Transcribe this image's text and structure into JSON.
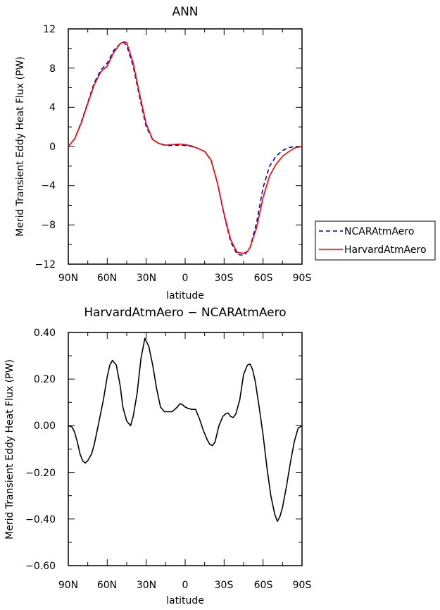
{
  "chart_data": [
    {
      "type": "line",
      "title": "ANN",
      "xlabel": "latitude",
      "ylabel": "Merid Transient Eddy Heat Flux (PW)",
      "x_ticks": [
        "90N",
        "60N",
        "30N",
        "0",
        "30S",
        "60S",
        "90S"
      ],
      "x_tick_values": [
        90,
        60,
        30,
        0,
        -30,
        -60,
        -90
      ],
      "xlim": [
        90,
        -90
      ],
      "ylim": [
        -12,
        12
      ],
      "y_ticks": [
        "12",
        "8",
        "4",
        "0",
        "−4",
        "−8",
        "−12"
      ],
      "y_tick_values": [
        12,
        8,
        4,
        0,
        -4,
        -8,
        -12
      ],
      "legend_position": "right",
      "series": [
        {
          "name": "NCARAtmAero",
          "color": "#0000cc",
          "dash": "dashed",
          "x": [
            90,
            85,
            80,
            75,
            70,
            65,
            60,
            55,
            50,
            47,
            45,
            40,
            35,
            30,
            25,
            20,
            15,
            10,
            5,
            0,
            -5,
            -10,
            -15,
            -20,
            -25,
            -30,
            -35,
            -40,
            -45,
            -48,
            -50,
            -55,
            -60,
            -65,
            -70,
            -75,
            -80,
            -85,
            -90
          ],
          "y": [
            0,
            0.8,
            2.5,
            4.5,
            6.5,
            7.8,
            8.5,
            9.8,
            10.5,
            10.6,
            10.3,
            8.2,
            5.0,
            2.0,
            0.7,
            0.3,
            0.1,
            0.1,
            0.15,
            0.1,
            0.0,
            -0.2,
            -0.5,
            -1.4,
            -3.8,
            -7.0,
            -9.7,
            -11.0,
            -11.1,
            -10.7,
            -10.3,
            -7.8,
            -4.2,
            -2.0,
            -1.0,
            -0.4,
            -0.1,
            0,
            0
          ]
        },
        {
          "name": "HarvardAtmAero",
          "color": "#ff0000",
          "dash": "solid",
          "x": [
            90,
            85,
            80,
            75,
            70,
            65,
            60,
            55,
            50,
            47,
            45,
            40,
            35,
            30,
            25,
            20,
            15,
            10,
            5,
            0,
            -5,
            -10,
            -15,
            -20,
            -25,
            -30,
            -35,
            -40,
            -45,
            -48,
            -50,
            -55,
            -60,
            -65,
            -70,
            -75,
            -80,
            -85,
            -90
          ],
          "y": [
            0,
            0.8,
            2.4,
            4.4,
            6.3,
            7.6,
            8.2,
            9.6,
            10.5,
            10.7,
            10.6,
            8.5,
            5.3,
            2.3,
            0.7,
            0.3,
            0.15,
            0.2,
            0.25,
            0.2,
            0.05,
            -0.2,
            -0.5,
            -1.4,
            -3.8,
            -6.9,
            -9.5,
            -10.8,
            -10.9,
            -10.7,
            -10.3,
            -8.3,
            -5.2,
            -3.0,
            -1.8,
            -1.0,
            -0.5,
            -0.1,
            0
          ]
        }
      ]
    },
    {
      "type": "line",
      "title": "HarvardAtmAero − NCARAtmAero",
      "xlabel": "latitude",
      "ylabel": "Merid Transient Eddy Heat Flux (PW)",
      "x_ticks": [
        "90N",
        "60N",
        "30N",
        "0",
        "30S",
        "60S",
        "90S"
      ],
      "x_tick_values": [
        90,
        60,
        30,
        0,
        -30,
        -60,
        -90
      ],
      "xlim": [
        90,
        -90
      ],
      "ylim": [
        -0.6,
        0.4
      ],
      "y_ticks": [
        "0.40",
        "0.20",
        "0.00",
        "−0.20",
        "−0.40",
        "−0.60"
      ],
      "y_tick_values": [
        0.4,
        0.2,
        0.0,
        -0.2,
        -0.4,
        -0.6
      ],
      "series": [
        {
          "name": "",
          "color": "#000000",
          "dash": "solid",
          "x": [
            90,
            87,
            85,
            83,
            81,
            79,
            77,
            75,
            72,
            70,
            67,
            63,
            60,
            58,
            56,
            53,
            50,
            48,
            45,
            42,
            40,
            37,
            34,
            31,
            28,
            25,
            22,
            19,
            16,
            13,
            10,
            8,
            6,
            4,
            2,
            0,
            -2,
            -5,
            -8,
            -11,
            -14,
            -17,
            -19,
            -21,
            -23,
            -26,
            -29,
            -31,
            -33,
            -35,
            -37,
            -39,
            -42,
            -45,
            -48,
            -50,
            -52,
            -54,
            -57,
            -60,
            -63,
            -66,
            -69,
            -71,
            -73,
            -75,
            -78,
            -81,
            -84,
            -87,
            -90
          ],
          "y": [
            0.0,
            -0.005,
            -0.03,
            -0.07,
            -0.12,
            -0.15,
            -0.16,
            -0.15,
            -0.12,
            -0.08,
            0.0,
            0.11,
            0.21,
            0.26,
            0.28,
            0.26,
            0.17,
            0.08,
            0.02,
            0.0,
            0.04,
            0.14,
            0.29,
            0.375,
            0.34,
            0.26,
            0.16,
            0.08,
            0.06,
            0.06,
            0.06,
            0.07,
            0.08,
            0.095,
            0.09,
            0.08,
            0.075,
            0.07,
            0.07,
            0.03,
            -0.02,
            -0.06,
            -0.08,
            -0.085,
            -0.07,
            0.0,
            0.04,
            0.05,
            0.055,
            0.04,
            0.035,
            0.05,
            0.11,
            0.22,
            0.26,
            0.265,
            0.24,
            0.19,
            0.08,
            -0.04,
            -0.18,
            -0.3,
            -0.38,
            -0.41,
            -0.39,
            -0.35,
            -0.26,
            -0.16,
            -0.07,
            -0.01,
            0.0
          ]
        }
      ]
    }
  ]
}
